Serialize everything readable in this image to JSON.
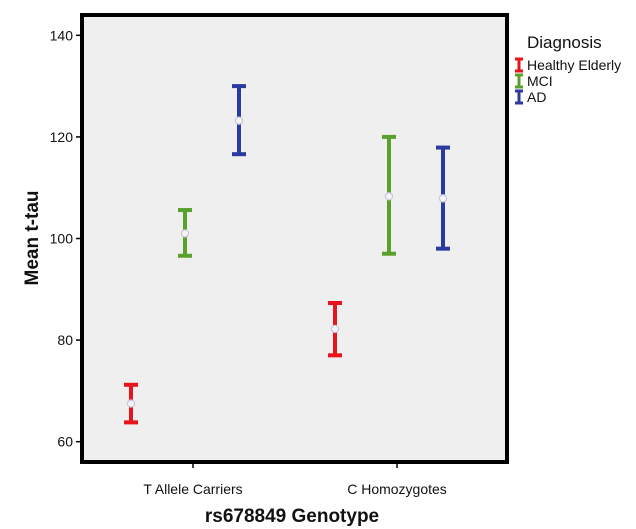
{
  "chart_data": {
    "type": "errorbar",
    "xlabel": "rs678849 Genotype",
    "ylabel": "Mean t-tau",
    "ylim": [
      56,
      144
    ],
    "yticks": [
      60,
      80,
      100,
      120,
      140
    ],
    "categories": [
      "T Allele Carriers",
      "C Homozygotes"
    ],
    "legend": {
      "title": "Diagnosis",
      "position": "right-outside-top"
    },
    "series": [
      {
        "name": "Healthy Elderly",
        "color": "#e8141c",
        "mean": [
          67.5,
          82.2
        ],
        "lower": [
          63.8,
          77.0
        ],
        "upper": [
          71.2,
          87.3
        ]
      },
      {
        "name": "MCI",
        "color": "#5aa02c",
        "mean": [
          101.0,
          108.3
        ],
        "lower": [
          96.6,
          97.0
        ],
        "upper": [
          105.6,
          120.0
        ]
      },
      {
        "name": "AD",
        "color": "#2a3a9e",
        "mean": [
          123.2,
          107.9
        ],
        "lower": [
          116.6,
          98.0
        ],
        "upper": [
          130.0,
          117.9
        ]
      }
    ],
    "background": "#f0efef"
  }
}
